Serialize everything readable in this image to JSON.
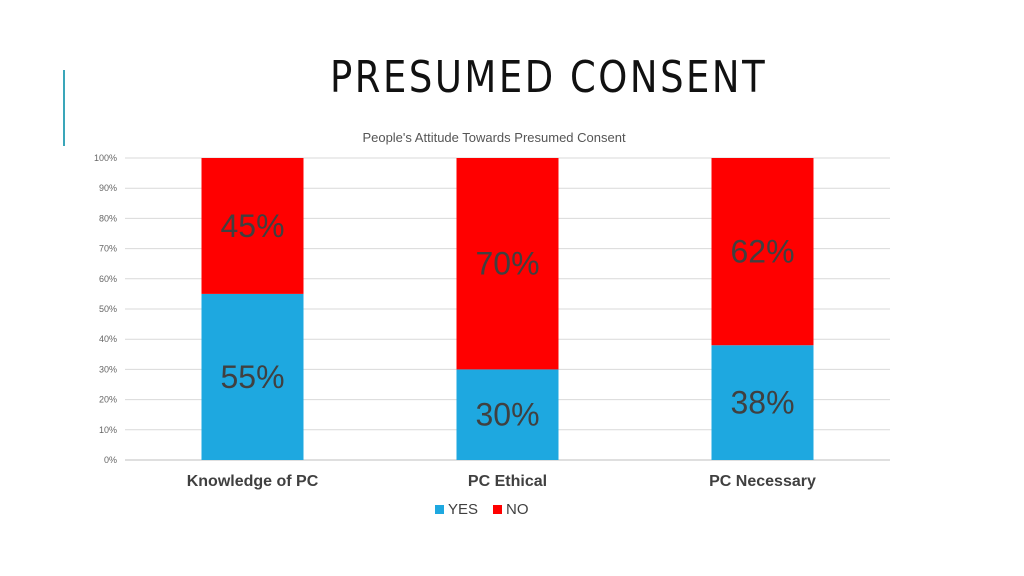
{
  "slide": {
    "title": "PRESUMED CONSENT",
    "accent_color": "#3aa6b9"
  },
  "chart_data": {
    "type": "bar",
    "stacked": true,
    "percent_stacked": true,
    "title": "People's Attitude Towards Presumed Consent",
    "categories": [
      "Knowledge of PC",
      "PC Ethical",
      "PC Necessary"
    ],
    "series": [
      {
        "name": "YES",
        "color": "#1ea8e0",
        "values": [
          55,
          30,
          38
        ],
        "labels": [
          "55%",
          "30%",
          "38%"
        ]
      },
      {
        "name": "NO",
        "color": "#ff0000",
        "values": [
          45,
          70,
          62
        ],
        "labels": [
          "45%",
          "70%",
          "62%"
        ]
      }
    ],
    "ylim": [
      0,
      100
    ],
    "yticks": [
      "0%",
      "10%",
      "20%",
      "30%",
      "40%",
      "50%",
      "60%",
      "70%",
      "80%",
      "90%",
      "100%"
    ],
    "grid": true,
    "legend_position": "bottom"
  }
}
